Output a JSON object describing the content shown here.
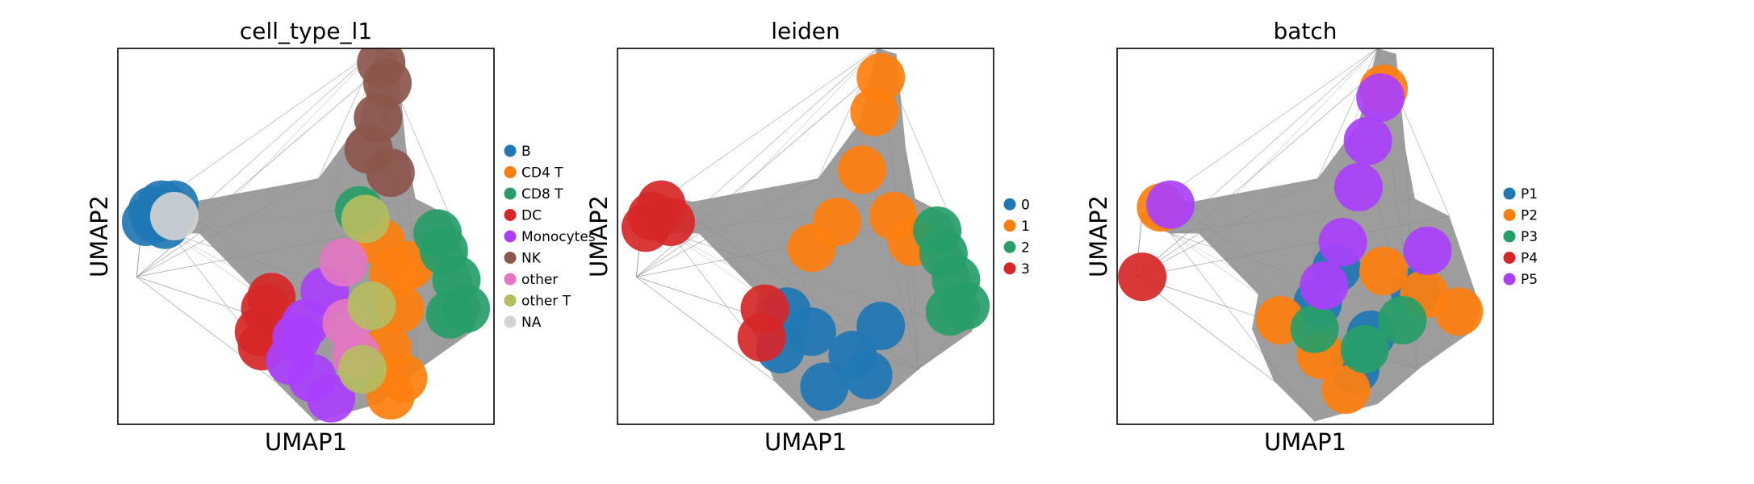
{
  "chart_data": [
    {
      "type": "scatter",
      "title": "cell_type_l1",
      "xlabel": "UMAP1",
      "ylabel": "UMAP2",
      "legend": {
        "placement": "right",
        "labels": [
          "B",
          "CD4 T",
          "CD8 T",
          "DC",
          "Monocytes",
          "NK",
          "other",
          "other T",
          "NA"
        ]
      },
      "series": [
        {
          "name": "B",
          "color": "#1f77b4",
          "points": [
            [
              -4.6,
              2.6
            ],
            [
              -4.9,
              2.4
            ],
            [
              -4.3,
              2.3
            ],
            [
              -4.8,
              2.1
            ],
            [
              -4.5,
              1.9
            ],
            [
              -5.1,
              2.0
            ],
            [
              -4.2,
              2.6
            ]
          ]
        },
        {
          "name": "CD4 T",
          "color": "#ff7f0e",
          "points": [
            [
              2.8,
              0.2
            ],
            [
              3.0,
              -1.0
            ],
            [
              2.6,
              -2.4
            ],
            [
              3.1,
              -3.4
            ],
            [
              2.4,
              1.3
            ],
            [
              3.3,
              0.5
            ],
            [
              2.7,
              -4.0
            ]
          ]
        },
        {
          "name": "CD8 T",
          "color": "#279e68",
          "points": [
            [
              4.4,
              1.0
            ],
            [
              4.8,
              0.0
            ],
            [
              4.6,
              -1.2
            ],
            [
              5.1,
              -1.0
            ],
            [
              1.7,
              2.4
            ],
            [
              4.2,
              1.6
            ]
          ]
        },
        {
          "name": "DC",
          "color": "#d62728",
          "points": [
            [
              -1.3,
              -1.0
            ],
            [
              -1.5,
              -1.8
            ],
            [
              -1.1,
              -0.6
            ],
            [
              -1.4,
              -2.3
            ]
          ]
        },
        {
          "name": "Monocytes",
          "color": "#aa40fc",
          "points": [
            [
              0.0,
              -1.5
            ],
            [
              -0.5,
              -2.8
            ],
            [
              0.6,
              -0.4
            ],
            [
              0.2,
              -3.4
            ],
            [
              -0.3,
              -2.0
            ],
            [
              0.8,
              -4.1
            ]
          ]
        },
        {
          "name": "NK",
          "color": "#8c564b",
          "points": [
            [
              2.3,
              5.6
            ],
            [
              2.6,
              6.8
            ],
            [
              2.0,
              4.5
            ],
            [
              2.7,
              3.7
            ],
            [
              2.4,
              7.5
            ]
          ]
        },
        {
          "name": "other",
          "color": "#e377c2",
          "points": [
            [
              1.3,
              -1.5
            ],
            [
              1.6,
              -2.6
            ],
            [
              1.2,
              0.6
            ]
          ]
        },
        {
          "name": "other T",
          "color": "#b5bd61",
          "points": [
            [
              1.9,
              2.1
            ],
            [
              2.1,
              -0.9
            ],
            [
              1.8,
              -3.1
            ]
          ]
        },
        {
          "name": "NA",
          "color": "#d3d3d3",
          "points": [
            [
              -4.2,
              2.2
            ]
          ]
        }
      ],
      "grid": false
    },
    {
      "type": "scatter",
      "title": "leiden",
      "xlabel": "UMAP1",
      "ylabel": "UMAP2",
      "legend": {
        "placement": "right",
        "labels": [
          "0",
          "1",
          "2",
          "3"
        ]
      },
      "series": [
        {
          "name": "0",
          "color": "#1f77b4",
          "points": [
            [
              0.2,
              -1.8
            ],
            [
              1.5,
              -2.6
            ],
            [
              -0.8,
              -2.4
            ],
            [
              2.4,
              -1.6
            ],
            [
              0.6,
              -3.7
            ],
            [
              -0.6,
              -1.1
            ],
            [
              2.0,
              -3.3
            ]
          ]
        },
        {
          "name": "1",
          "color": "#ff7f0e",
          "points": [
            [
              2.2,
              5.8
            ],
            [
              2.4,
              7.0
            ],
            [
              1.8,
              3.8
            ],
            [
              1.0,
              2.0
            ],
            [
              2.8,
              2.2
            ],
            [
              0.2,
              1.1
            ],
            [
              3.4,
              1.3
            ]
          ]
        },
        {
          "name": "2",
          "color": "#279e68",
          "points": [
            [
              4.4,
              0.9
            ],
            [
              4.8,
              0.0
            ],
            [
              4.6,
              -1.1
            ],
            [
              5.1,
              -0.9
            ],
            [
              4.2,
              1.7
            ]
          ]
        },
        {
          "name": "3",
          "color": "#d62728",
          "points": [
            [
              -4.6,
              2.6
            ],
            [
              -4.9,
              2.2
            ],
            [
              -4.3,
              2.0
            ],
            [
              -1.3,
              -1.0
            ],
            [
              -1.4,
              -2.0
            ],
            [
              -5.1,
              1.8
            ]
          ]
        }
      ],
      "grid": false
    },
    {
      "type": "scatter",
      "title": "batch",
      "xlabel": "UMAP1",
      "ylabel": "UMAP2",
      "legend": {
        "placement": "right",
        "labels": [
          "P1",
          "P2",
          "P3",
          "P4",
          "P5"
        ]
      },
      "series": [
        {
          "name": "P1",
          "color": "#1f77b4",
          "points": [
            [
              0.4,
              -0.8
            ],
            [
              2.1,
              -1.9
            ],
            [
              1.0,
              0.4
            ],
            [
              3.5,
              -0.4
            ],
            [
              1.6,
              -3.1
            ]
          ]
        },
        {
          "name": "P2",
          "color": "#ff7f0e",
          "points": [
            [
              0.5,
              -2.6
            ],
            [
              3.8,
              -0.5
            ],
            [
              4.9,
              -1.1
            ],
            [
              -0.8,
              -1.4
            ],
            [
              2.5,
              0.3
            ],
            [
              1.3,
              -3.8
            ],
            [
              -4.6,
              2.5
            ],
            [
              2.5,
              6.6
            ]
          ]
        },
        {
          "name": "P3",
          "color": "#279e68",
          "points": [
            [
              1.9,
              -2.4
            ],
            [
              3.1,
              -1.4
            ],
            [
              0.3,
              -1.7
            ]
          ]
        },
        {
          "name": "P4",
          "color": "#d62728",
          "points": [
            [
              -5.2,
              0.1
            ]
          ]
        },
        {
          "name": "P5",
          "color": "#aa40fc",
          "points": [
            [
              1.7,
              3.2
            ],
            [
              2.0,
              4.8
            ],
            [
              1.2,
              1.3
            ],
            [
              0.6,
              -0.2
            ],
            [
              2.4,
              6.3
            ],
            [
              -4.3,
              2.6
            ],
            [
              3.9,
              1.0
            ]
          ]
        }
      ],
      "grid": false
    }
  ]
}
